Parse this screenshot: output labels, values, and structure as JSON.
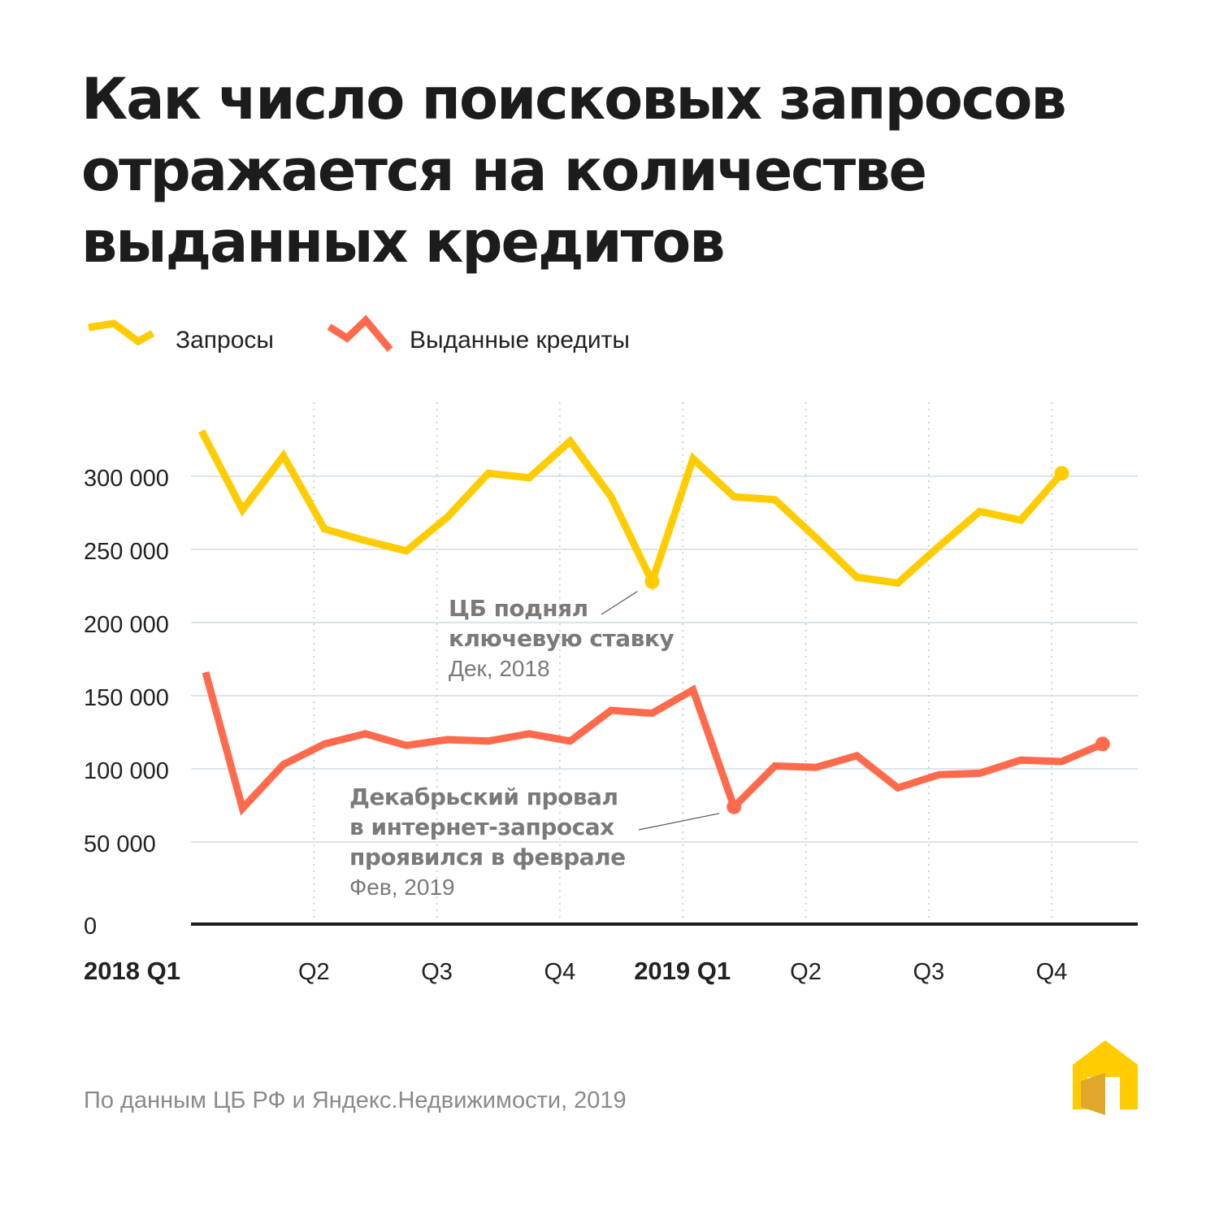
{
  "title": "Как число поисковых запросов отражается на количестве выданных кредитов",
  "source": "По данным ЦБ РФ и Яндекс.Недвижимости, 2019",
  "colors": {
    "queries": "#FFCC00",
    "credits": "#FF6A4D",
    "grid": "#C8D4DC",
    "axis": "#1c1c1c",
    "annotation": "#7a7a7a"
  },
  "logo": "yandex-realty-house-logo",
  "chart_data": {
    "type": "line",
    "legend_placement": "top-left",
    "grid": true,
    "ylim": [
      0,
      300000
    ],
    "y_ticks": [
      0,
      50000,
      100000,
      150000,
      200000,
      250000,
      300000
    ],
    "y_tick_labels": [
      "0",
      "50 000",
      "100 000",
      "150 000",
      "200 000",
      "250 000",
      "300 000"
    ],
    "x_tick_labels": [
      "2018 Q1",
      "Q2",
      "Q3",
      "Q4",
      "2019 Q1",
      "Q2",
      "Q3",
      "Q4"
    ],
    "x_months": [
      "2018-01",
      "2018-02",
      "2018-03",
      "2018-04",
      "2018-05",
      "2018-06",
      "2018-07",
      "2018-08",
      "2018-09",
      "2018-10",
      "2018-11",
      "2018-12",
      "2019-01",
      "2019-02",
      "2019-03",
      "2019-04",
      "2019-05",
      "2019-06",
      "2019-07",
      "2019-08",
      "2019-09",
      "2019-10",
      "2019-11"
    ],
    "series": [
      {
        "name": "Запросы",
        "color": "#FFCC00",
        "values": [
          331000,
          277000,
          314000,
          264000,
          256000,
          249000,
          272000,
          302000,
          299000,
          324000,
          286000,
          228000,
          312000,
          286000,
          284000,
          258000,
          231000,
          227000,
          252000,
          276000,
          270000,
          302000
        ]
      },
      {
        "name": "Выданные кредиты",
        "color": "#FF6A4D",
        "values": [
          166000,
          73000,
          103000,
          117000,
          124000,
          116000,
          120000,
          119000,
          124000,
          119000,
          140000,
          138000,
          154000,
          74000,
          102000,
          101000,
          109000,
          87000,
          96000,
          97000,
          106000,
          105000,
          117000
        ]
      }
    ],
    "annotations": [
      {
        "series": 0,
        "month": "2018-12",
        "lines": [
          "ЦБ поднял",
          "ключевую ставку"
        ],
        "date": "Дек, 2018"
      },
      {
        "series": 1,
        "month": "2019-02",
        "lines": [
          "Декабрьский провал",
          "в интернет-запросах",
          "проявился в феврале"
        ],
        "date": "Фев, 2019"
      }
    ]
  }
}
